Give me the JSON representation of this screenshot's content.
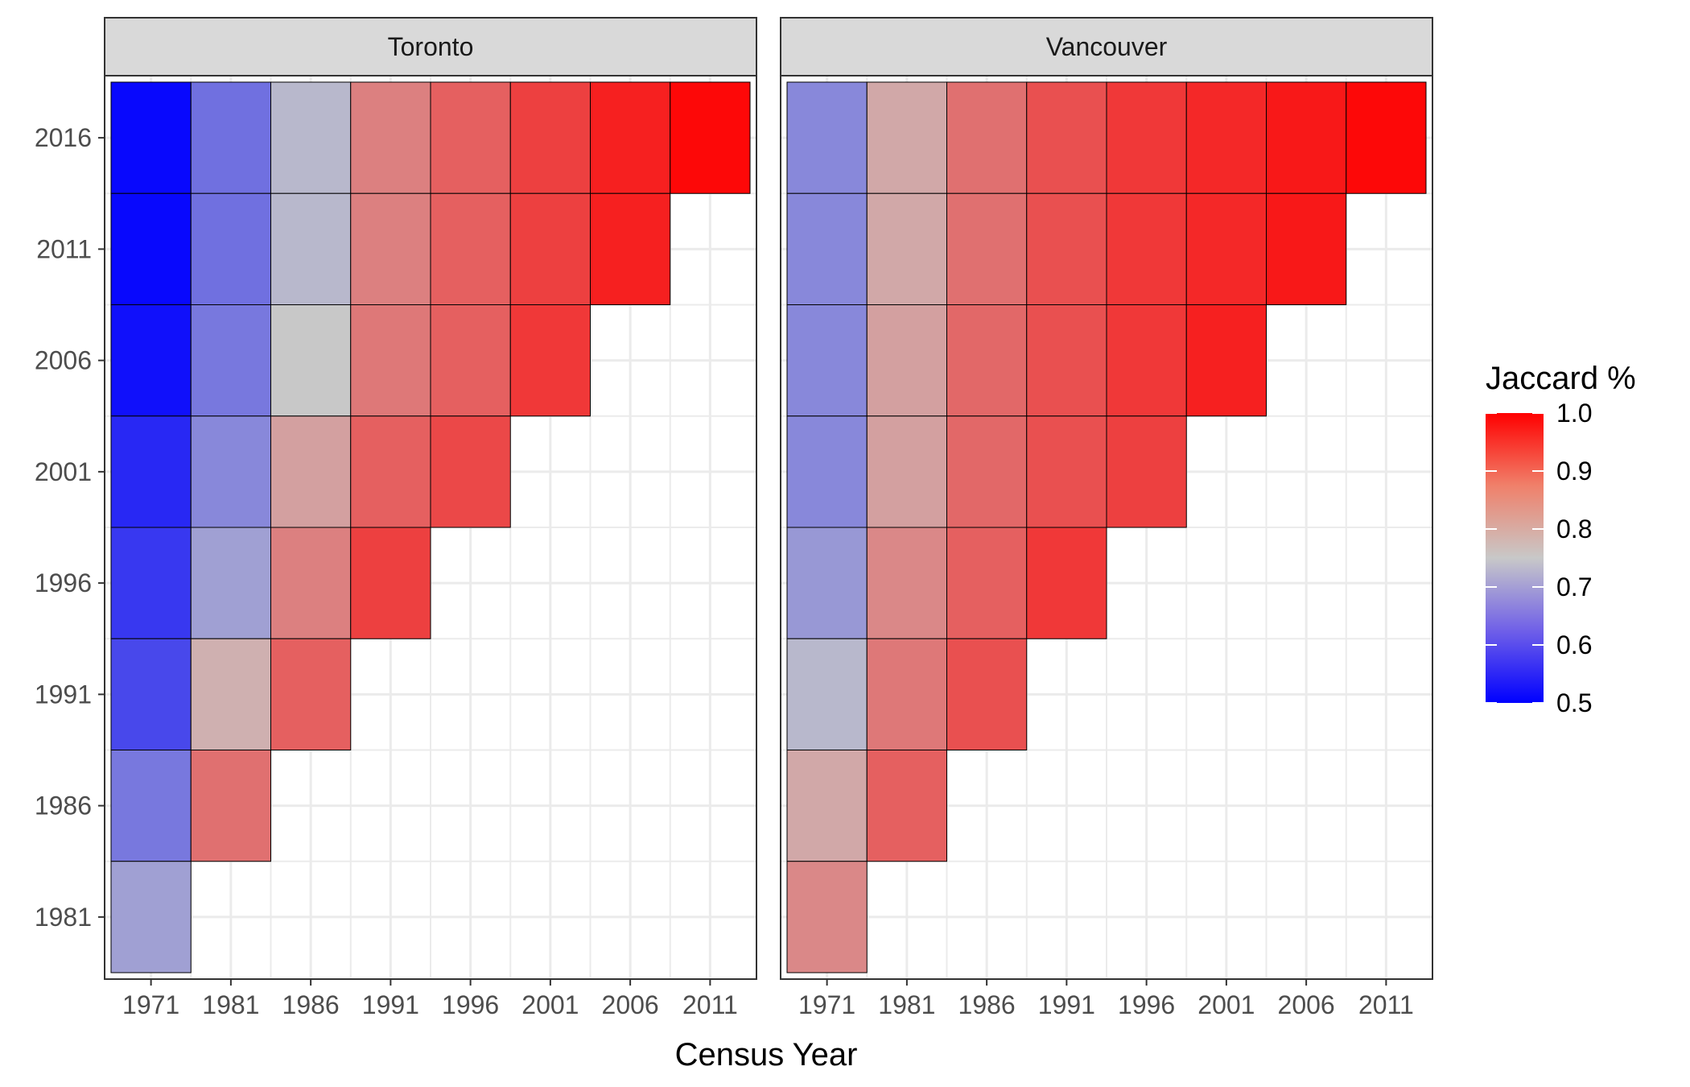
{
  "chart_data": {
    "type": "heatmap",
    "xlabel": "Census Year",
    "ylabel": "",
    "x_categories": [
      "1971",
      "1981",
      "1986",
      "1991",
      "1996",
      "2001",
      "2006",
      "2011"
    ],
    "y_categories": [
      "1981",
      "1986",
      "1991",
      "1996",
      "2001",
      "2006",
      "2011",
      "2016"
    ],
    "legend": {
      "title": "Jaccard %",
      "range": [
        0.5,
        1.0
      ],
      "ticks": [
        "1.0",
        "0.9",
        "0.8",
        "0.7",
        "0.6",
        "0.5"
      ],
      "low_color": "#0000ff",
      "mid_color": "#c8c8c8",
      "high_color": "#ff0000",
      "midpoint": 0.75,
      "position": "right"
    },
    "panels": [
      {
        "name": "Toronto",
        "rows": [
          {
            "y": "2016",
            "values": [
              0.51,
              0.64,
              0.73,
              0.84,
              0.88,
              0.92,
              0.96,
              0.99
            ]
          },
          {
            "y": "2011",
            "values": [
              0.51,
              0.64,
              0.73,
              0.84,
              0.88,
              0.92,
              0.96
            ]
          },
          {
            "y": "2006",
            "values": [
              0.52,
              0.65,
              0.75,
              0.85,
              0.88,
              0.93
            ]
          },
          {
            "y": "2001",
            "values": [
              0.55,
              0.67,
              0.8,
              0.88,
              0.91
            ]
          },
          {
            "y": "1996",
            "values": [
              0.57,
              0.7,
              0.84,
              0.92
            ]
          },
          {
            "y": "1991",
            "values": [
              0.59,
              0.78,
              0.88
            ]
          },
          {
            "y": "1986",
            "values": [
              0.65,
              0.86
            ]
          },
          {
            "y": "1981",
            "values": [
              0.7
            ]
          }
        ]
      },
      {
        "name": "Vancouver",
        "rows": [
          {
            "y": "2016",
            "values": [
              0.67,
              0.79,
              0.86,
              0.9,
              0.93,
              0.95,
              0.97,
              0.99
            ]
          },
          {
            "y": "2011",
            "values": [
              0.67,
              0.79,
              0.86,
              0.9,
              0.93,
              0.95,
              0.97
            ]
          },
          {
            "y": "2006",
            "values": [
              0.67,
              0.8,
              0.87,
              0.9,
              0.93,
              0.96
            ]
          },
          {
            "y": "2001",
            "values": [
              0.67,
              0.8,
              0.87,
              0.9,
              0.92
            ]
          },
          {
            "y": "1996",
            "values": [
              0.69,
              0.83,
              0.88,
              0.93
            ]
          },
          {
            "y": "1991",
            "values": [
              0.73,
              0.85,
              0.9
            ]
          },
          {
            "y": "1986",
            "values": [
              0.79,
              0.88
            ]
          },
          {
            "y": "1981",
            "values": [
              0.83
            ]
          }
        ]
      }
    ],
    "grid": true,
    "theme": "bw"
  }
}
